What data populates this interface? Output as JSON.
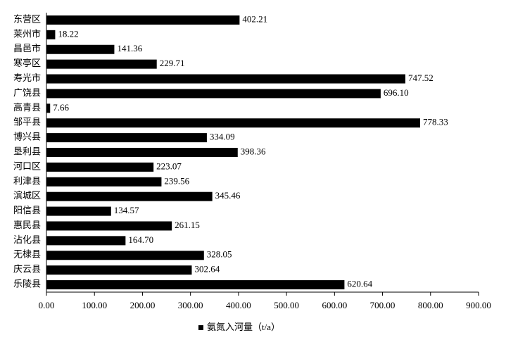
{
  "chart_data": {
    "type": "barh",
    "categories": [
      "东营区",
      "莱州市",
      "昌邑市",
      "寒亭区",
      "寿光市",
      "广饶县",
      "高青县",
      "邹平县",
      "博兴县",
      "垦利县",
      "河口区",
      "利津县",
      "滨城区",
      "阳信县",
      "惠民县",
      "沾化县",
      "无棣县",
      "庆云县",
      "乐陵县"
    ],
    "series": [
      {
        "name": "氨氮入河量（t/a）",
        "color": "#000000",
        "values": [
          402.21,
          18.22,
          141.36,
          229.71,
          747.52,
          696.1,
          7.66,
          778.33,
          334.09,
          398.36,
          223.07,
          239.56,
          345.46,
          134.57,
          261.15,
          164.7,
          328.05,
          302.64,
          620.64
        ],
        "value_labels": [
          "402.21",
          "18.22",
          "141.36",
          "229.71",
          "747.52",
          "696.10",
          "7.66",
          "778.33",
          "334.09",
          "398.36",
          "223.07",
          "239.56",
          "345.46",
          "134.57",
          "261.15",
          "164.70",
          "328.05",
          "302.64",
          "620.64"
        ]
      }
    ],
    "xlim": [
      0,
      900
    ],
    "xticks": [
      {
        "value": 0,
        "label": "0.00"
      },
      {
        "value": 100,
        "label": "100.00"
      },
      {
        "value": 200,
        "label": "200.00"
      },
      {
        "value": 300,
        "label": "300.00"
      },
      {
        "value": 400,
        "label": "400.00"
      },
      {
        "value": 500,
        "label": "500.00"
      },
      {
        "value": 600,
        "label": "600.00"
      },
      {
        "value": 700,
        "label": "700.00"
      },
      {
        "value": 800,
        "label": "800.00"
      },
      {
        "value": 900,
        "label": "900.00"
      }
    ],
    "legend": "bottom"
  }
}
